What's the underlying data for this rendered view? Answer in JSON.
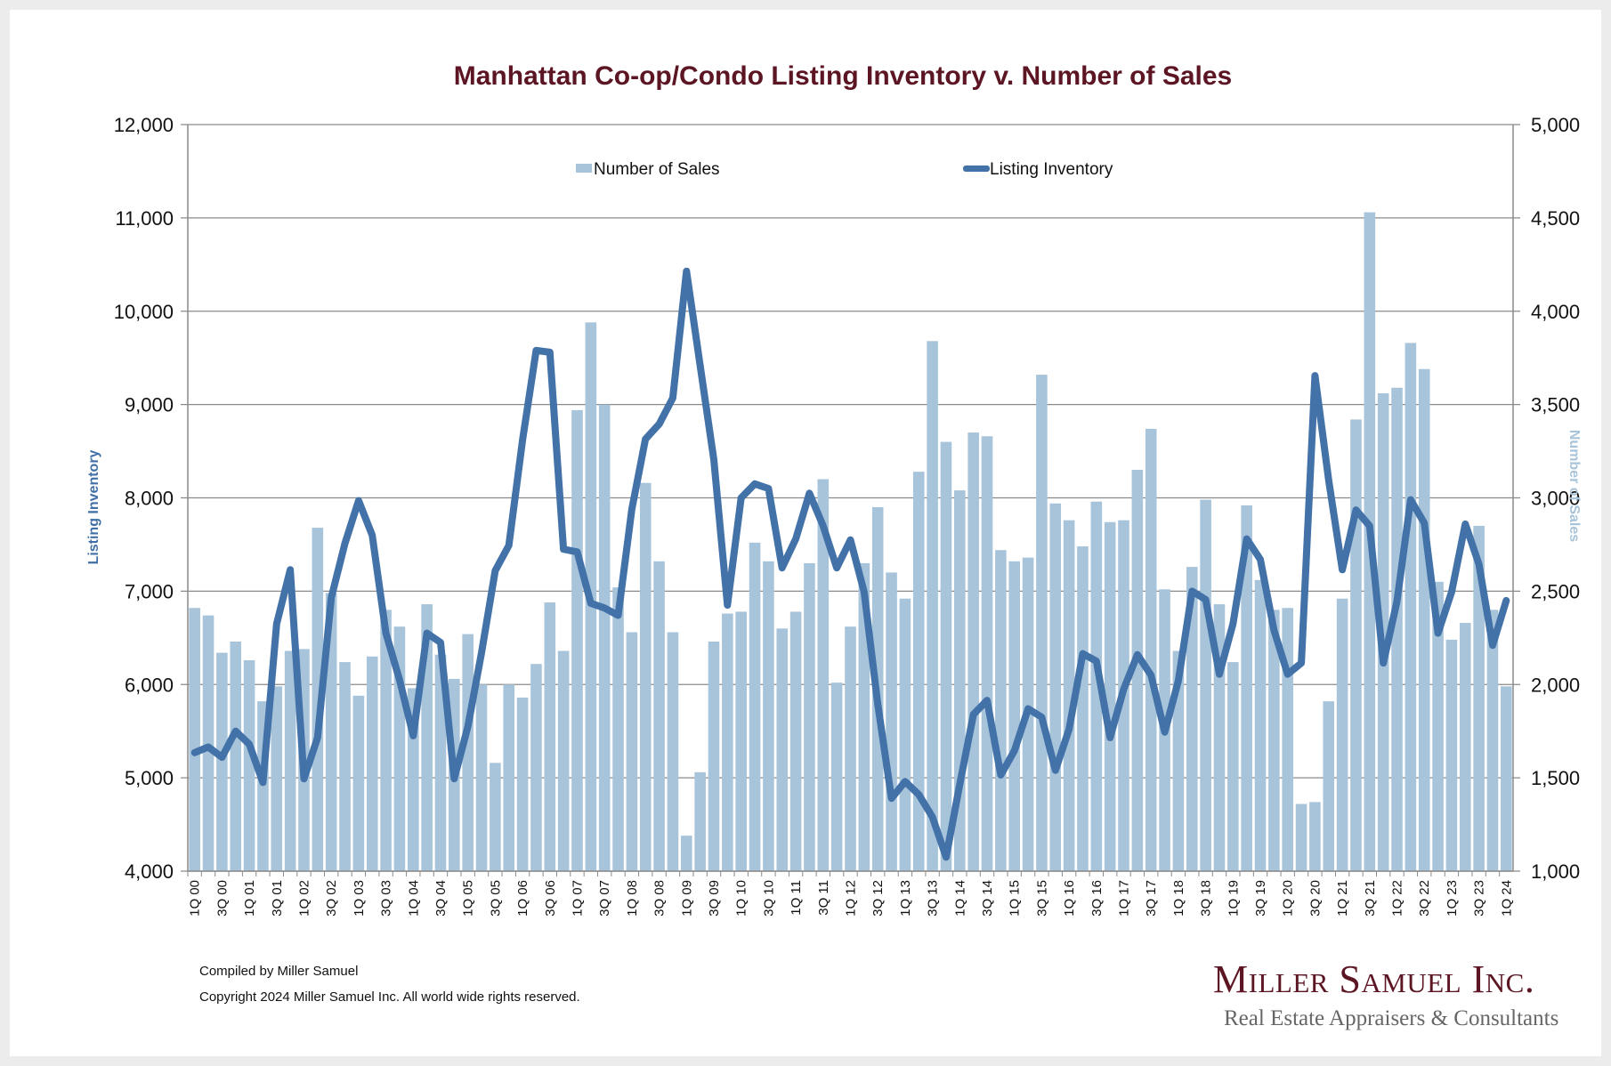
{
  "chart_data": {
    "type": "bar+line",
    "title": "Manhattan Co-op/Condo Listing Inventory v. Number of Sales",
    "ylabel_left": "Listing Inventory",
    "ylabel_right": "Number of Sales",
    "ylim_left": [
      4000,
      12000
    ],
    "ylim_right": [
      1000,
      5000
    ],
    "yticks_left": [
      "4,000",
      "5,000",
      "6,000",
      "7,000",
      "8,000",
      "9,000",
      "10,000",
      "11,000",
      "12,000"
    ],
    "yticks_right": [
      "1,000",
      "1,500",
      "2,000",
      "2,500",
      "3,000",
      "3,500",
      "4,000",
      "4,500",
      "5,000"
    ],
    "grid": true,
    "legend_position": "top-center",
    "categories": [
      "1Q 00",
      "2Q 00",
      "3Q 00",
      "4Q 00",
      "1Q 01",
      "2Q 01",
      "3Q 01",
      "4Q 01",
      "1Q 02",
      "2Q 02",
      "3Q 02",
      "4Q 02",
      "1Q 03",
      "2Q 03",
      "3Q 03",
      "4Q 03",
      "1Q 04",
      "2Q 04",
      "3Q 04",
      "4Q 04",
      "1Q 05",
      "2Q 05",
      "3Q 05",
      "4Q 05",
      "1Q 06",
      "2Q 06",
      "3Q 06",
      "4Q 06",
      "1Q 07",
      "2Q 07",
      "3Q 07",
      "4Q 07",
      "1Q 08",
      "2Q 08",
      "3Q 08",
      "4Q 08",
      "1Q 09",
      "2Q 09",
      "3Q 09",
      "4Q 09",
      "1Q 10",
      "2Q 10",
      "3Q 10",
      "4Q 10",
      "1Q 11",
      "2Q 11",
      "3Q 11",
      "4Q 11",
      "1Q 12",
      "2Q 12",
      "3Q 12",
      "4Q 12",
      "1Q 13",
      "2Q 13",
      "3Q 13",
      "4Q 13",
      "1Q 14",
      "2Q 14",
      "3Q 14",
      "4Q 14",
      "1Q 15",
      "2Q 15",
      "3Q 15",
      "4Q 15",
      "1Q 16",
      "2Q 16",
      "3Q 16",
      "4Q 16",
      "1Q 17",
      "2Q 17",
      "3Q 17",
      "4Q 17",
      "1Q 18",
      "2Q 18",
      "3Q 18",
      "4Q 18",
      "1Q 19",
      "2Q 19",
      "3Q 19",
      "4Q 19",
      "1Q 20",
      "2Q 20",
      "3Q 20",
      "4Q 20",
      "1Q 21",
      "2Q 21",
      "3Q 21",
      "4Q 21",
      "1Q 22",
      "2Q 22",
      "3Q 22",
      "4Q 22",
      "1Q 23",
      "2Q 23",
      "3Q 23",
      "4Q 23",
      "1Q 24"
    ],
    "xtick_labels_shown_every": 2,
    "series": [
      {
        "name": "Number of Sales",
        "type": "bar",
        "axis": "right",
        "color": "#a8c4da",
        "values": [
          2410,
          2370,
          2170,
          2230,
          2130,
          1910,
          1990,
          2180,
          2190,
          2840,
          2490,
          2120,
          1940,
          2150,
          2400,
          2310,
          1980,
          2430,
          2160,
          2030,
          2270,
          2000,
          1580,
          2000,
          1930,
          2110,
          2440,
          2180,
          3470,
          3940,
          3500,
          2520,
          2280,
          3080,
          2660,
          2280,
          1190,
          1530,
          2230,
          2380,
          2390,
          2760,
          2660,
          2300,
          2390,
          2650,
          3100,
          2010,
          2310,
          2650,
          2950,
          2600,
          2460,
          3140,
          3840,
          3300,
          3040,
          3350,
          3330,
          2720,
          2660,
          2680,
          3660,
          2970,
          2880,
          2740,
          2980,
          2870,
          2880,
          3150,
          3370,
          2510,
          2180,
          2630,
          2990,
          2430,
          2120,
          2960,
          2560,
          2400,
          2410,
          1360,
          1370,
          1910,
          2460,
          3420,
          4530,
          3560,
          3590,
          3830,
          3690,
          2550,
          2240,
          2330,
          2850,
          2400,
          1990
        ]
      },
      {
        "name": "Listing Inventory",
        "type": "line",
        "axis": "left",
        "color": "#4372a8",
        "values": [
          5270,
          5330,
          5220,
          5500,
          5360,
          4950,
          6650,
          7230,
          4990,
          5430,
          6930,
          7510,
          7970,
          7600,
          6550,
          6050,
          5450,
          6550,
          6450,
          4990,
          5550,
          6340,
          7220,
          7490,
          8620,
          9580,
          9560,
          7450,
          7420,
          6870,
          6820,
          6740,
          7880,
          8630,
          8790,
          9070,
          10430,
          9420,
          8410,
          6850,
          8000,
          8150,
          8100,
          7250,
          7560,
          8050,
          7700,
          7250,
          7550,
          6990,
          5790,
          4780,
          4960,
          4820,
          4580,
          4150,
          4930,
          5680,
          5830,
          5030,
          5290,
          5740,
          5650,
          5080,
          5520,
          6330,
          6250,
          5430,
          5950,
          6320,
          6100,
          5490,
          6040,
          7000,
          6910,
          6110,
          6650,
          7560,
          7340,
          6580,
          6110,
          6230,
          9310,
          8190,
          7230,
          7870,
          7700,
          6230,
          6890,
          7980,
          7730,
          6550,
          6990,
          7720,
          7290,
          6420,
          6900
        ]
      }
    ]
  },
  "footer": {
    "compiled": "Compiled by Miller Samuel",
    "copyright": "Copyright 2024 Miller Samuel Inc.  All world wide rights reserved."
  },
  "logo": {
    "name": "Miller Samuel Inc.",
    "tagline": "Real Estate Appraisers & Consultants"
  }
}
